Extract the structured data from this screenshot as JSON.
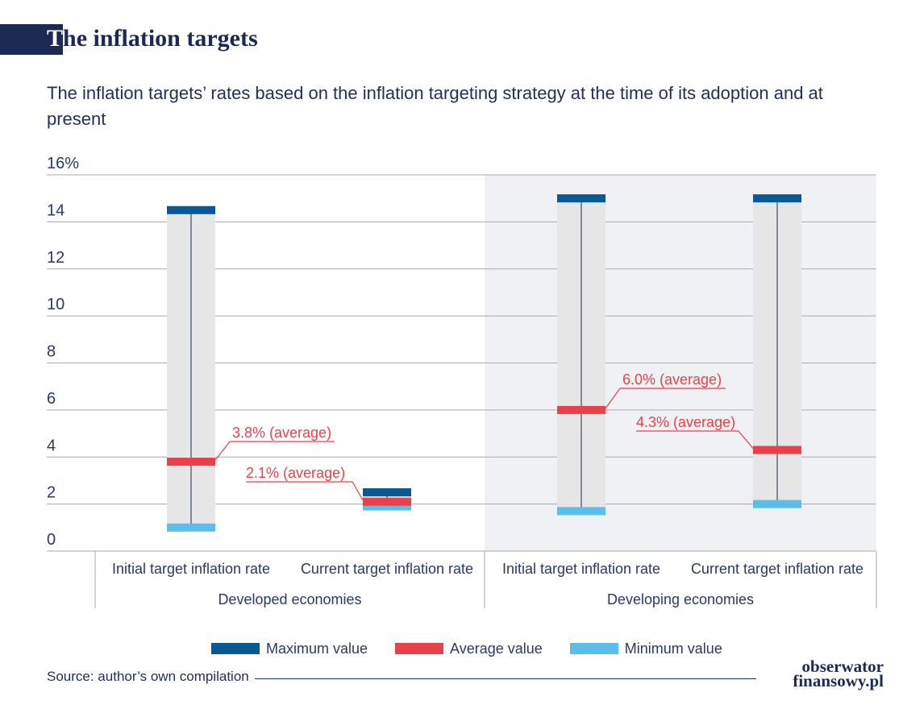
{
  "header": {
    "title_first": "T",
    "title_rest": "he inflation targets",
    "subtitle": "The inflation targets’ rates based on the inflation targeting strategy at the time of its adoption and at present"
  },
  "colors": {
    "max": "#0a5894",
    "avg": "#e8414a",
    "min": "#5bbde9",
    "range_band": "#e6e6e6",
    "shade": "#f0f1f4",
    "axis_text": "#2a3a60",
    "grid": "#a9a9a9",
    "whisker": "#1b2a55",
    "annotation": "#e8414a"
  },
  "chart_data": {
    "type": "range-bar",
    "ylim": [
      0,
      16
    ],
    "yticks": [
      {
        "value": 0,
        "label": "0"
      },
      {
        "value": 2,
        "label": "2"
      },
      {
        "value": 4,
        "label": "4"
      },
      {
        "value": 6,
        "label": "6"
      },
      {
        "value": 8,
        "label": "8"
      },
      {
        "value": 10,
        "label": "10"
      },
      {
        "value": 12,
        "label": "12"
      },
      {
        "value": 14,
        "label": "14"
      },
      {
        "value": 16,
        "label": "16%"
      }
    ],
    "groups": [
      {
        "label": "Developed economies",
        "shaded": false
      },
      {
        "label": "Developing economies",
        "shaded": true
      }
    ],
    "categories": [
      {
        "group": 0,
        "label": "Initial target inflation rate",
        "max": 14.5,
        "avg": 3.8,
        "min": 1.0,
        "annotation": "3.8% (average)"
      },
      {
        "group": 0,
        "label": "Current target inflation rate",
        "max": 2.5,
        "avg": 2.1,
        "min": 1.9,
        "annotation": "2.1% (average)"
      },
      {
        "group": 1,
        "label": "Initial target inflation rate",
        "max": 15.0,
        "avg": 6.0,
        "min": 1.7,
        "annotation": "6.0% (average)"
      },
      {
        "group": 1,
        "label": "Current target inflation rate",
        "max": 15.0,
        "avg": 4.3,
        "min": 2.0,
        "annotation": "4.3% (average)"
      }
    ],
    "legend": {
      "position": "bottom",
      "entries": [
        {
          "label": "Maximum value",
          "key": "max"
        },
        {
          "label": "Average value",
          "key": "avg"
        },
        {
          "label": "Minimum value",
          "key": "min"
        }
      ]
    },
    "grid": true
  },
  "footer": {
    "source": "Source: author’s own compilation",
    "logo_line1": "obserwator",
    "logo_line2": "finansowy.pl"
  }
}
